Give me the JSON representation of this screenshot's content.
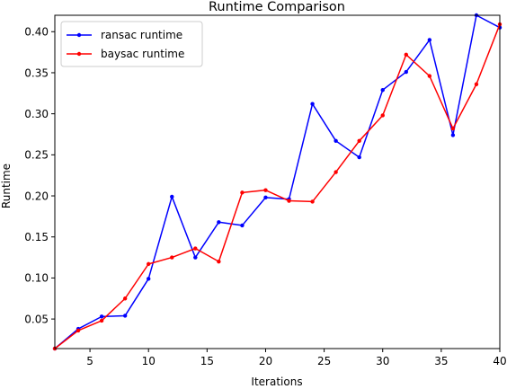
{
  "chart_data": {
    "type": "line",
    "title": "Runtime Comparison",
    "xlabel": "Iterations",
    "ylabel": "Runtime",
    "xlim": [
      2,
      40
    ],
    "ylim": [
      0.014,
      0.42
    ],
    "xticks": [
      5,
      10,
      15,
      20,
      25,
      30,
      35,
      40
    ],
    "xtick_labels": [
      "5",
      "10",
      "15",
      "20",
      "25",
      "30",
      "35",
      "40"
    ],
    "yticks": [
      0.05,
      0.1,
      0.15,
      0.2,
      0.25,
      0.3,
      0.35,
      0.4
    ],
    "ytick_labels": [
      "0.05",
      "0.10",
      "0.15",
      "0.20",
      "0.25",
      "0.30",
      "0.35",
      "0.40"
    ],
    "grid": false,
    "legend_position": "upper-left",
    "x": [
      2,
      4,
      6,
      8,
      10,
      12,
      14,
      16,
      18,
      20,
      22,
      24,
      26,
      28,
      30,
      32,
      34,
      36,
      38,
      40
    ],
    "series": [
      {
        "name": "ransac runtime",
        "color": "#0000ff",
        "values": [
          0.014,
          0.038,
          0.053,
          0.054,
          0.099,
          0.199,
          0.125,
          0.168,
          0.164,
          0.198,
          0.196,
          0.312,
          0.267,
          0.247,
          0.329,
          0.351,
          0.39,
          0.274,
          0.42,
          0.405
        ]
      },
      {
        "name": "baysac runtime",
        "color": "#ff0000",
        "values": [
          0.014,
          0.036,
          0.048,
          0.075,
          0.117,
          0.125,
          0.136,
          0.12,
          0.204,
          0.207,
          0.194,
          0.193,
          0.229,
          0.267,
          0.298,
          0.372,
          0.346,
          0.282,
          0.336,
          0.409
        ]
      }
    ]
  }
}
